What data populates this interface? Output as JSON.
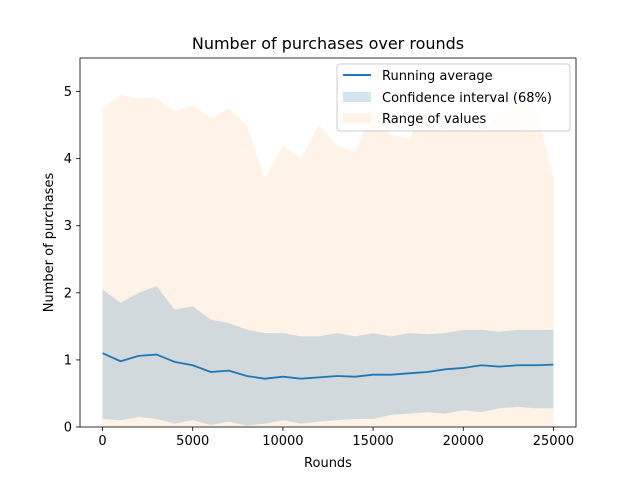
{
  "chart_data": {
    "type": "area",
    "title": "Number of purchases over rounds",
    "xlabel": "Rounds",
    "ylabel": "Number of purchases",
    "xlim": [
      -1250,
      26250
    ],
    "ylim": [
      0,
      5.5
    ],
    "xticks": [
      0,
      5000,
      10000,
      15000,
      20000,
      25000
    ],
    "yticks": [
      0,
      1,
      2,
      3,
      4,
      5
    ],
    "grid": false,
    "legend_position": "top-right",
    "colors": {
      "running_average": "#1f77b4",
      "confidence_interval": "#1f77b4",
      "range_of_values": "#ff7f0e"
    },
    "legend": [
      "Running average",
      "Confidence interval (68%)",
      "Range of values"
    ],
    "series": [
      {
        "name": "Running average",
        "x": [
          0,
          1000,
          2000,
          3000,
          4000,
          5000,
          6000,
          7000,
          8000,
          9000,
          10000,
          11000,
          12000,
          13000,
          14000,
          15000,
          16000,
          17000,
          18000,
          19000,
          20000,
          21000,
          22000,
          23000,
          24000,
          25000
        ],
        "y": [
          1.1,
          0.98,
          1.06,
          1.08,
          0.97,
          0.92,
          0.82,
          0.84,
          0.76,
          0.72,
          0.75,
          0.72,
          0.74,
          0.76,
          0.75,
          0.78,
          0.78,
          0.8,
          0.82,
          0.86,
          0.88,
          0.92,
          0.9,
          0.92,
          0.92,
          0.93
        ]
      },
      {
        "name": "Confidence interval (68%)",
        "x": [
          0,
          1000,
          2000,
          3000,
          4000,
          5000,
          6000,
          7000,
          8000,
          9000,
          10000,
          11000,
          12000,
          13000,
          14000,
          15000,
          16000,
          17000,
          18000,
          19000,
          20000,
          21000,
          22000,
          23000,
          24000,
          25000
        ],
        "lower": [
          0.12,
          0.1,
          0.15,
          0.12,
          0.05,
          0.1,
          0.03,
          0.08,
          0.02,
          0.05,
          0.1,
          0.05,
          0.08,
          0.1,
          0.12,
          0.12,
          0.18,
          0.2,
          0.22,
          0.2,
          0.25,
          0.22,
          0.28,
          0.3,
          0.28,
          0.28
        ],
        "upper": [
          2.05,
          1.85,
          2.0,
          2.1,
          1.75,
          1.8,
          1.6,
          1.55,
          1.45,
          1.4,
          1.4,
          1.35,
          1.35,
          1.4,
          1.35,
          1.4,
          1.35,
          1.4,
          1.38,
          1.4,
          1.45,
          1.45,
          1.42,
          1.45,
          1.45,
          1.45
        ]
      },
      {
        "name": "Range of values",
        "x": [
          0,
          1000,
          2000,
          3000,
          4000,
          5000,
          6000,
          7000,
          8000,
          9000,
          10000,
          11000,
          12000,
          13000,
          14000,
          15000,
          16000,
          17000,
          18000,
          19000,
          20000,
          21000,
          22000,
          23000,
          24000,
          25000
        ],
        "lower": [
          0,
          0,
          0,
          0,
          0,
          0,
          0,
          0,
          0,
          0,
          0,
          0,
          0,
          0,
          0,
          0,
          0,
          0,
          0,
          0,
          0,
          0,
          0,
          0,
          0,
          0
        ],
        "upper": [
          4.75,
          4.95,
          4.9,
          4.9,
          4.7,
          4.8,
          4.6,
          4.75,
          4.5,
          3.7,
          4.2,
          4.0,
          4.5,
          4.2,
          4.1,
          4.7,
          4.35,
          4.3,
          4.8,
          4.4,
          4.6,
          4.4,
          4.7,
          4.85,
          4.8,
          3.7
        ]
      }
    ]
  }
}
